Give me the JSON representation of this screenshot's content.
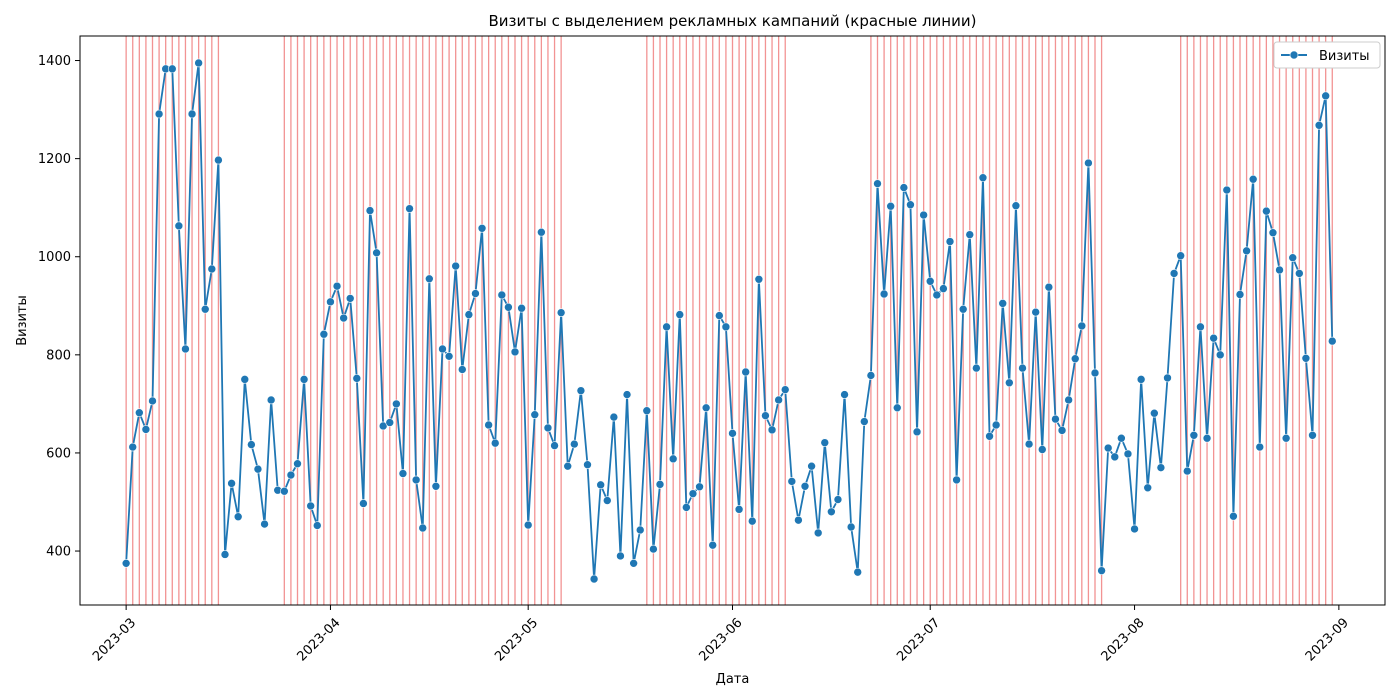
{
  "chart_data": {
    "type": "line",
    "title": "Визиты с выделением рекламных кампаний (красные линии)",
    "xlabel": "Дата",
    "ylabel": "Визиты",
    "start_date": "2023-03-01",
    "xlim": [
      "2023-02-22",
      "2023-09-08"
    ],
    "ylim": [
      290,
      1450
    ],
    "x_ticks": [
      "2023-03",
      "2023-04",
      "2023-05",
      "2023-06",
      "2023-07",
      "2023-08",
      "2023-09"
    ],
    "y_ticks": [
      400,
      600,
      800,
      1000,
      1200,
      1400
    ],
    "legend": {
      "placement": "top-right",
      "entries": [
        "Визиты"
      ]
    },
    "colors": {
      "line": "#1f77b4",
      "campaign": "#f08080"
    },
    "campaign_periods": [
      {
        "start": "2023-03-01",
        "end": "2023-03-15"
      },
      {
        "start": "2023-03-25",
        "end": "2023-05-06"
      },
      {
        "start": "2023-05-19",
        "end": "2023-06-09"
      },
      {
        "start": "2023-06-22",
        "end": "2023-07-27"
      },
      {
        "start": "2023-08-08",
        "end": "2023-08-31"
      }
    ],
    "series": [
      {
        "name": "Визиты",
        "values": [
          375,
          612,
          682,
          648,
          706,
          1291,
          1383,
          1383,
          1063,
          812,
          1291,
          1395,
          893,
          975,
          1197,
          393,
          538,
          470,
          750,
          617,
          567,
          455,
          708,
          524,
          522,
          555,
          578,
          750,
          492,
          452,
          842,
          908,
          940,
          875,
          915,
          752,
          497,
          1094,
          1008,
          655,
          662,
          700,
          558,
          1098,
          545,
          447,
          955,
          532,
          812,
          797,
          981,
          770,
          882,
          925,
          1058,
          657,
          620,
          922,
          897,
          806,
          895,
          453,
          678,
          1050,
          651,
          615,
          886,
          573,
          618,
          727,
          576,
          343,
          535,
          503,
          673,
          390,
          719,
          375,
          443,
          686,
          404,
          536,
          857,
          588,
          882,
          489,
          517,
          531,
          692,
          412,
          880,
          857,
          640,
          485,
          765,
          461,
          954,
          676,
          647,
          708,
          729,
          542,
          463,
          532,
          573,
          437,
          621,
          480,
          505,
          719,
          449,
          357,
          664,
          758,
          1149,
          924,
          1103,
          692,
          1141,
          1106,
          643,
          1085,
          950,
          922,
          935,
          1031,
          545,
          893,
          1045,
          773,
          1161,
          634,
          657,
          905,
          743,
          1104,
          773,
          618,
          887,
          607,
          938,
          669,
          646,
          708,
          792,
          859,
          1191,
          763,
          360,
          610,
          592,
          630,
          598,
          445,
          750,
          529,
          681,
          570,
          753,
          966,
          1002,
          563,
          636,
          857,
          630,
          834,
          800,
          1136,
          471,
          923,
          1012,
          1158,
          612,
          1093,
          1049,
          973,
          630,
          998,
          966,
          793,
          636,
          1268,
          1328,
          828
        ]
      }
    ]
  }
}
